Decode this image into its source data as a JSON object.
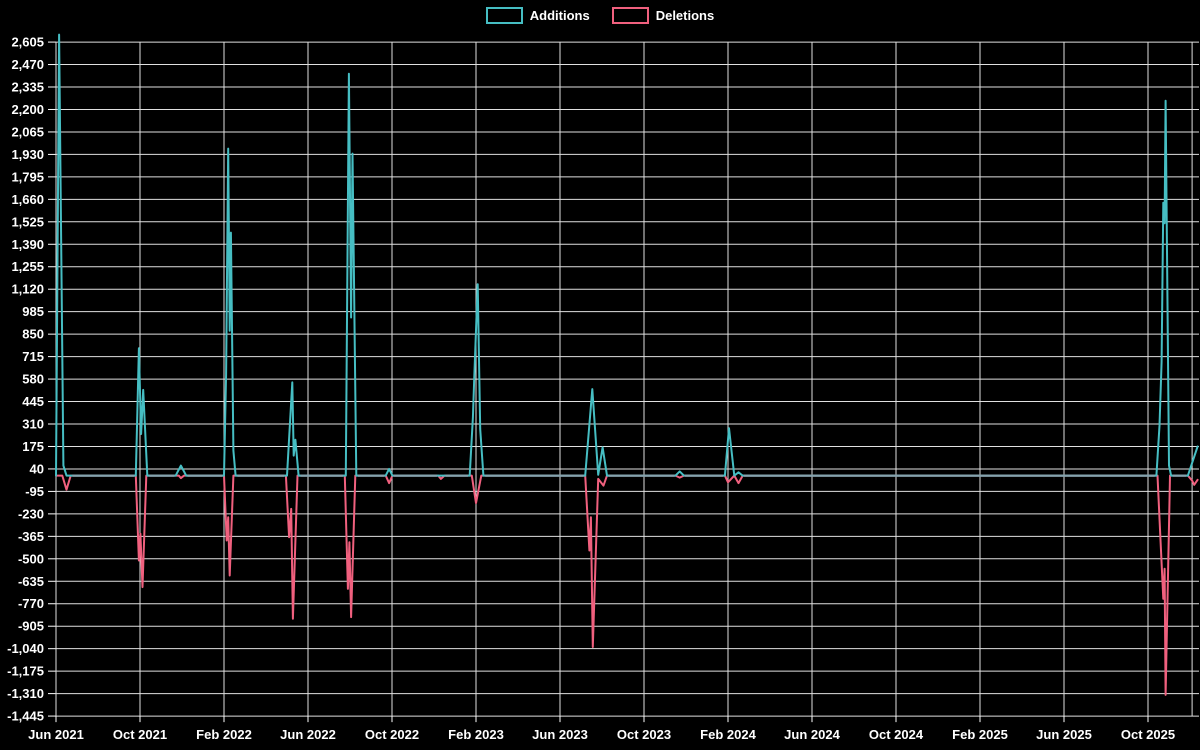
{
  "page": {
    "background": "#000000",
    "text_color": "#ffffff",
    "grid_color": "#e0e0e0",
    "zero_overlap_color": "#85a3ae"
  },
  "chart_data": {
    "type": "line",
    "title": "",
    "legend_position": "top-center",
    "grid": true,
    "x_axis": {
      "unit": "months since Jun 2021",
      "tick_labels": [
        "Jun 2021",
        "Oct 2021",
        "Feb 2022",
        "Jun 2022",
        "Oct 2022",
        "Feb 2023",
        "Jun 2023",
        "Oct 2023",
        "Feb 2024",
        "Jun 2024",
        "Oct 2024",
        "Feb 2025",
        "Jun 2025",
        "Oct 2025"
      ],
      "tick_months": [
        0,
        4,
        8,
        12,
        16,
        20,
        24,
        28,
        32,
        36,
        40,
        44,
        48,
        52
      ],
      "boundary_gridline_month": 54.1,
      "x_max_month": 54.36
    },
    "y_axis": {
      "min": -1445,
      "max": 2605,
      "tick_step": 135,
      "tick_labels": [
        "2,605",
        "2,470",
        "2,335",
        "2,200",
        "2,065",
        "1,930",
        "1,795",
        "1,660",
        "1,525",
        "1,390",
        "1,255",
        "1,120",
        "985",
        "850",
        "715",
        "580",
        "445",
        "310",
        "175",
        "40",
        "-95",
        "-230",
        "-365",
        "-500",
        "-635",
        "-770",
        "-905",
        "-1,040",
        "-1,175",
        "-1,310",
        "-1,445"
      ]
    },
    "series": [
      {
        "name": "Additions",
        "color": "#46bec3",
        "points": [
          [
            0,
            0
          ],
          [
            0.15,
            2650
          ],
          [
            0.35,
            60
          ],
          [
            0.5,
            0
          ],
          [
            3.8,
            0
          ],
          [
            3.95,
            765
          ],
          [
            4.05,
            250
          ],
          [
            4.15,
            515
          ],
          [
            4.35,
            0
          ],
          [
            5.7,
            0
          ],
          [
            5.95,
            60
          ],
          [
            6.2,
            0
          ],
          [
            8.0,
            0
          ],
          [
            8.1,
            610
          ],
          [
            8.2,
            1965
          ],
          [
            8.27,
            870
          ],
          [
            8.33,
            1460
          ],
          [
            8.45,
            150
          ],
          [
            8.55,
            0
          ],
          [
            11.0,
            0
          ],
          [
            11.25,
            560
          ],
          [
            11.32,
            120
          ],
          [
            11.4,
            215
          ],
          [
            11.55,
            0
          ],
          [
            13.8,
            0
          ],
          [
            13.95,
            2415
          ],
          [
            14.05,
            950
          ],
          [
            14.12,
            1935
          ],
          [
            14.3,
            0
          ],
          [
            15.7,
            0
          ],
          [
            15.86,
            40
          ],
          [
            16.02,
            0
          ],
          [
            19.7,
            0
          ],
          [
            19.85,
            350
          ],
          [
            19.92,
            594
          ],
          [
            20.08,
            1150
          ],
          [
            20.2,
            280
          ],
          [
            20.35,
            0
          ],
          [
            25.2,
            0
          ],
          [
            25.54,
            520
          ],
          [
            25.82,
            5
          ],
          [
            26.03,
            170
          ],
          [
            26.24,
            0
          ],
          [
            29.5,
            0
          ],
          [
            29.7,
            25
          ],
          [
            29.9,
            0
          ],
          [
            31.85,
            0
          ],
          [
            32.05,
            285
          ],
          [
            32.3,
            0
          ],
          [
            32.5,
            20
          ],
          [
            32.7,
            0
          ],
          [
            52.4,
            0
          ],
          [
            52.55,
            300
          ],
          [
            52.65,
            684
          ],
          [
            52.73,
            1640
          ],
          [
            52.79,
            1516
          ],
          [
            52.84,
            2252
          ],
          [
            53.0,
            60
          ],
          [
            53.1,
            0
          ],
          [
            53.9,
            0
          ],
          [
            54.36,
            175
          ]
        ]
      },
      {
        "name": "Deletions",
        "color": "#f0607e",
        "points": [
          [
            0,
            0
          ],
          [
            0.3,
            0
          ],
          [
            0.5,
            -85
          ],
          [
            0.7,
            0
          ],
          [
            3.8,
            0
          ],
          [
            3.95,
            -510
          ],
          [
            4.02,
            -350
          ],
          [
            4.12,
            -670
          ],
          [
            4.3,
            0
          ],
          [
            5.85,
            0
          ],
          [
            5.95,
            -15
          ],
          [
            6.1,
            0
          ],
          [
            8.0,
            0
          ],
          [
            8.13,
            -390
          ],
          [
            8.2,
            -250
          ],
          [
            8.27,
            -600
          ],
          [
            8.45,
            0
          ],
          [
            10.95,
            0
          ],
          [
            11.1,
            -370
          ],
          [
            11.2,
            -200
          ],
          [
            11.28,
            -860
          ],
          [
            11.5,
            0
          ],
          [
            13.75,
            0
          ],
          [
            13.9,
            -680
          ],
          [
            13.97,
            -400
          ],
          [
            14.05,
            -850
          ],
          [
            14.25,
            0
          ],
          [
            15.7,
            0
          ],
          [
            15.86,
            -45
          ],
          [
            16.02,
            0
          ],
          [
            18.2,
            0
          ],
          [
            18.33,
            -20
          ],
          [
            18.5,
            0
          ],
          [
            19.8,
            0
          ],
          [
            20.0,
            -165
          ],
          [
            20.25,
            0
          ],
          [
            25.2,
            0
          ],
          [
            25.4,
            -450
          ],
          [
            25.47,
            -250
          ],
          [
            25.56,
            -1030
          ],
          [
            25.82,
            -20
          ],
          [
            26.07,
            -60
          ],
          [
            26.24,
            0
          ],
          [
            29.5,
            0
          ],
          [
            29.7,
            -12
          ],
          [
            29.9,
            0
          ],
          [
            31.85,
            0
          ],
          [
            32.0,
            -40
          ],
          [
            32.3,
            0
          ],
          [
            32.5,
            -45
          ],
          [
            32.7,
            0
          ],
          [
            52.45,
            0
          ],
          [
            52.6,
            -400
          ],
          [
            52.73,
            -740
          ],
          [
            52.79,
            -560
          ],
          [
            52.84,
            -1318
          ],
          [
            53.05,
            0
          ],
          [
            53.9,
            0
          ],
          [
            54.1,
            -30
          ],
          [
            54.2,
            -55
          ],
          [
            54.36,
            -25
          ]
        ]
      }
    ]
  }
}
